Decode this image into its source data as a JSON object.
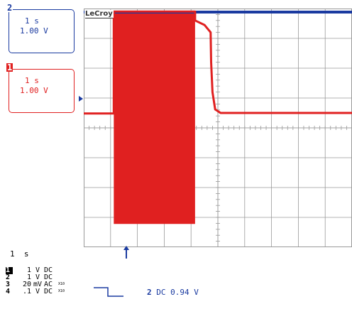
{
  "scope": {
    "logo": "LeCroy",
    "channels": {
      "ch2": {
        "label": "2",
        "timebase": "1 s",
        "volts_div": "1.00 V",
        "color": "#1a3aa0"
      },
      "ch1": {
        "label": "1",
        "timebase": "1 s",
        "volts_div": "1.00 V",
        "color": "#e02020"
      }
    },
    "grid": {
      "divisions_x": 10,
      "divisions_y": 8,
      "grid_color": "#9a9a9a"
    },
    "trigger_position_marker": "up-arrow-icon"
  },
  "chart_data": {
    "type": "line",
    "x_units": "div",
    "y_units": "div",
    "xlim": [
      0,
      10
    ],
    "ylim": [
      0,
      8
    ],
    "series": [
      {
        "color": "#1a3aa0",
        "x": [
          0,
          7.22,
          7.6,
          10
        ],
        "y": [
          7.88,
          7.88,
          7.88,
          7.88
        ]
      },
      {
        "color": "#e02020",
        "x": [
          0,
          1.12,
          1.12,
          4.15,
          4.15,
          4.5,
          4.73,
          4.75,
          4.8,
          4.9,
          5.1,
          10
        ],
        "y": [
          4.48,
          4.48,
          7.9,
          7.9,
          7.6,
          7.45,
          7.2,
          6.2,
          5.2,
          4.62,
          4.5,
          4.5
        ]
      }
    ],
    "burst": {
      "color": "#e02020",
      "x_start": 1.12,
      "x_end": 4.15,
      "y_low": 0.78,
      "y_high": 7.9
    }
  },
  "readout": {
    "timebase": "1  s",
    "channels": [
      {
        "num": "1",
        "value": "1",
        "unit": "V",
        "coupling": "DC",
        "bw": ""
      },
      {
        "num": "2",
        "value": "1",
        "unit": "V",
        "coupling": "DC",
        "bw": ""
      },
      {
        "num": "3",
        "value": "20",
        "unit": "mV",
        "coupling": "AC",
        "bw": "X10"
      },
      {
        "num": "4",
        "value": ".1",
        "unit": "V",
        "coupling": "DC",
        "bw": "X10"
      }
    ],
    "trigger": {
      "source": "2",
      "coupling": "DC",
      "level": "0.94 V"
    }
  }
}
